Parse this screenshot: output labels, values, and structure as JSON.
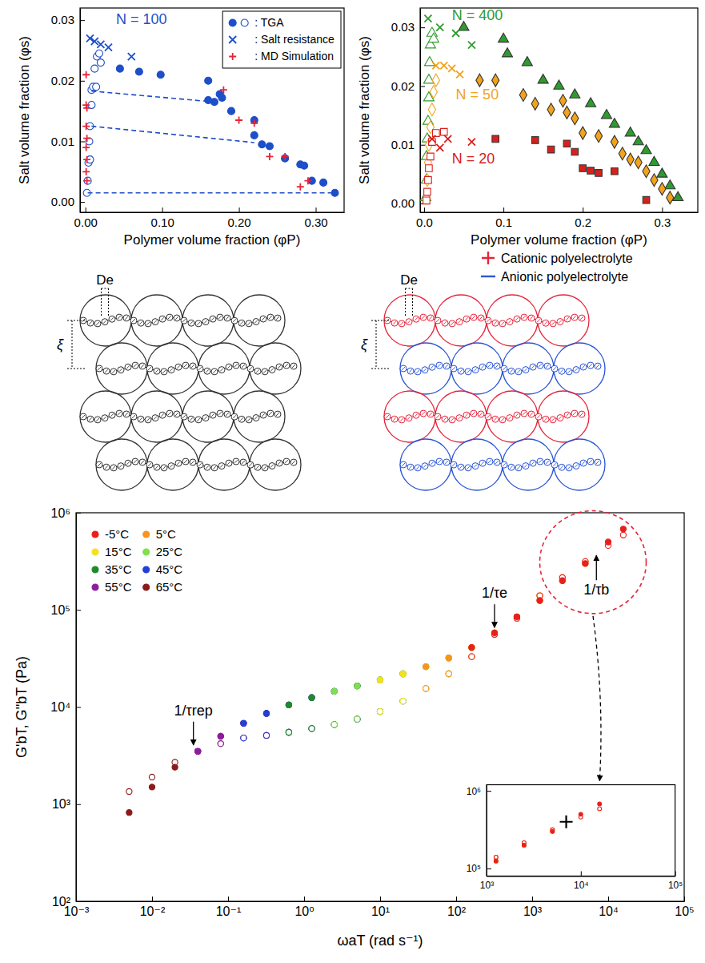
{
  "chart_data": [
    {
      "type": "scatter",
      "xlabel": "Polymer volume fraction (φP)",
      "ylabel": "Salt volume fraction (φs)",
      "xlim": [
        -0.007,
        0.337
      ],
      "ylim": [
        -0.0017,
        0.032
      ],
      "xticks": [
        {
          "value": 0,
          "label": "0.00"
        },
        {
          "value": 0.1,
          "label": "0.10"
        },
        {
          "value": 0.2,
          "label": "0.20"
        },
        {
          "value": 0.3,
          "label": "0.30"
        }
      ],
      "yticks": [
        {
          "value": 0,
          "label": "0.00"
        },
        0.01,
        0.02,
        0.03
      ],
      "legend": "upper right",
      "annotations": [
        {
          "text": "N = 100",
          "x": 0.04,
          "y": 0.0293,
          "color": "#1d4fc9"
        }
      ],
      "series": [
        {
          "name": ": TGA",
          "color": "#1d4fc9",
          "marker": "circle",
          "x": [
            0.045,
            0.07,
            0.098,
            0.16,
            0.16,
            0.168,
            0.175,
            0.178,
            0.19,
            0.22,
            0.22,
            0.23,
            0.24,
            0.26,
            0.28,
            0.285,
            0.295,
            0.31,
            0.325
          ],
          "values": [
            0.022,
            0.0215,
            0.021,
            0.02,
            0.0168,
            0.0165,
            0.0178,
            0.0172,
            0.015,
            0.0135,
            0.011,
            0.0095,
            0.0092,
            0.0072,
            0.0062,
            0.006,
            0.0035,
            0.0032,
            0.0015
          ]
        },
        {
          "name": ": TGA",
          "color": "#1d4fc9",
          "marker": "open-circle",
          "x": [
            0.002,
            0.003,
            0.004,
            0.006,
            0.005,
            0.006,
            0.008,
            0.008,
            0.01,
            0.014,
            0.012,
            0.015,
            0.02,
            0.018
          ],
          "values": [
            0.0015,
            0.0035,
            0.0065,
            0.007,
            0.01,
            0.0125,
            0.016,
            0.0185,
            0.019,
            0.019,
            0.022,
            0.024,
            0.023,
            0.0245
          ]
        },
        {
          "name": ": Salt resistance",
          "color": "#1d4fc9",
          "marker": "x",
          "x": [
            0.006,
            0.012,
            0.02,
            0.03,
            0.06
          ],
          "values": [
            0.027,
            0.0265,
            0.026,
            0.0255,
            0.024
          ]
        },
        {
          "name": ": MD Simulation",
          "color": "#e8233a",
          "marker": "plus",
          "x": [
            0.001,
            0.001,
            0.002,
            0.001,
            0.002,
            0.001,
            0.002,
            0.001,
            0.002,
            0.18,
            0.2,
            0.22,
            0.24,
            0.26,
            0.28,
            0.29
          ],
          "values": [
            0.021,
            0.016,
            0.0155,
            0.0125,
            0.0105,
            0.009,
            0.007,
            0.005,
            0.0035,
            0.0185,
            0.0135,
            0.013,
            0.0075,
            0.0075,
            0.0025,
            0.0035
          ]
        },
        {
          "type": "line",
          "line_style": "dashed",
          "color": "#1d4fc9",
          "x": [
            0.008,
            0.168,
            null,
            0.008,
            0.22,
            null,
            0.003,
            0.325
          ],
          "values": [
            0.0183,
            0.0165,
            null,
            0.0125,
            0.0098,
            null,
            0.0015,
            0.0015
          ]
        }
      ]
    },
    {
      "type": "scatter",
      "xlabel": "Polymer volume fraction (φP)",
      "ylabel": "Salt volume fraction (φs)",
      "xlim": [
        -0.005,
        0.345
      ],
      "ylim": [
        -0.0015,
        0.0333
      ],
      "xticks": [
        {
          "value": 0,
          "label": "0.0"
        },
        0.1,
        0.2,
        0.3
      ],
      "yticks": [
        {
          "value": 0,
          "label": "0.00"
        },
        0.01,
        0.02,
        0.03
      ],
      "annotations": [
        {
          "text": "N = 400",
          "x": 0.035,
          "y": 0.0313,
          "color": "#2e9b2e"
        },
        {
          "text": "N = 50",
          "x": 0.04,
          "y": 0.0178,
          "color": "#f2a31b"
        },
        {
          "text": "N = 20",
          "x": 0.035,
          "y": 0.0068,
          "color": "#d9201c"
        }
      ],
      "series": [
        {
          "color": "#2e9b2e",
          "marker": "triangle",
          "x": [
            0.05,
            0.1,
            0.105,
            0.13,
            0.15,
            0.17,
            0.19,
            0.21,
            0.23,
            0.24,
            0.26,
            0.27,
            0.28,
            0.29,
            0.3,
            0.31,
            0.32
          ],
          "values": [
            0.03,
            0.028,
            0.0255,
            0.024,
            0.021,
            0.02,
            0.0185,
            0.017,
            0.015,
            0.0135,
            0.012,
            0.0105,
            0.009,
            0.007,
            0.005,
            0.003,
            0.001
          ]
        },
        {
          "color": "#2e9b2e",
          "marker": "open-triangle",
          "x": [
            0.002,
            0.003,
            0.003,
            0.004,
            0.005,
            0.006,
            0.006,
            0.007,
            0.008,
            0.01,
            0.012
          ],
          "values": [
            0.001,
            0.004,
            0.008,
            0.011,
            0.014,
            0.018,
            0.021,
            0.024,
            0.027,
            0.029,
            0.028
          ]
        },
        {
          "color": "#2e9b2e",
          "marker": "x",
          "x": [
            0.005,
            0.02,
            0.04,
            0.06
          ],
          "values": [
            0.0315,
            0.03,
            0.029,
            0.027
          ]
        },
        {
          "color": "#f2a31b",
          "marker": "diamond",
          "x": [
            0.07,
            0.09,
            0.125,
            0.14,
            0.16,
            0.175,
            0.18,
            0.19,
            0.2,
            0.22,
            0.24,
            0.25,
            0.26,
            0.27,
            0.28,
            0.29,
            0.3,
            0.31
          ],
          "values": [
            0.021,
            0.021,
            0.0185,
            0.017,
            0.016,
            0.0175,
            0.0155,
            0.0145,
            0.012,
            0.0115,
            0.0105,
            0.0085,
            0.0075,
            0.007,
            0.0055,
            0.004,
            0.0025,
            0.001
          ]
        },
        {
          "color": "#f2a31b",
          "marker": "open-diamond",
          "x": [
            0.003,
            0.004,
            0.005,
            0.006,
            0.008,
            0.01,
            0.012,
            0.015
          ],
          "values": [
            0.001,
            0.004,
            0.007,
            0.01,
            0.013,
            0.016,
            0.019,
            0.021
          ]
        },
        {
          "color": "#f2a31b",
          "marker": "x",
          "x": [
            0.015,
            0.025,
            0.035,
            0.045
          ],
          "values": [
            0.0235,
            0.0235,
            0.023,
            0.022
          ]
        },
        {
          "color": "#d9201c",
          "marker": "square",
          "x": [
            0.09,
            0.14,
            0.16,
            0.18,
            0.19,
            0.2,
            0.21,
            0.22,
            0.24,
            0.28
          ],
          "values": [
            0.011,
            0.0108,
            0.0092,
            0.0102,
            0.0088,
            0.006,
            0.0056,
            0.0052,
            0.0055,
            0.0006
          ]
        },
        {
          "color": "#d9201c",
          "marker": "open-square",
          "x": [
            0.003,
            0.004,
            0.005,
            0.006,
            0.008,
            0.01,
            0.015,
            0.025
          ],
          "values": [
            0.0005,
            0.002,
            0.004,
            0.006,
            0.008,
            0.0105,
            0.012,
            0.0122
          ]
        },
        {
          "color": "#d9201c",
          "marker": "x",
          "x": [
            0.01,
            0.02,
            0.03,
            0.06
          ],
          "values": [
            0.011,
            0.0095,
            0.011,
            0.0105
          ]
        }
      ]
    },
    {
      "type": "scatter",
      "log": true,
      "xlabel": "ωaT (rad s⁻¹)",
      "ylabel": "G'bT, G''bT (Pa)",
      "xlim": [
        0.001,
        100000
      ],
      "ylim": [
        100,
        1000000
      ],
      "xticks": [
        {
          "value": 0.001,
          "label": "10⁻³"
        },
        {
          "value": 0.01,
          "label": "10⁻²"
        },
        {
          "value": 0.1,
          "label": "10⁻¹"
        },
        {
          "value": 1,
          "label": "10⁰"
        },
        {
          "value": 10,
          "label": "10¹"
        },
        {
          "value": 100,
          "label": "10²"
        },
        {
          "value": 1000,
          "label": "10³"
        },
        {
          "value": 10000,
          "label": "10⁴"
        },
        {
          "value": 100000,
          "label": "10⁵"
        }
      ],
      "yticks": [
        {
          "value": 100,
          "label": "10²"
        },
        {
          "value": 1000,
          "label": "10³"
        },
        {
          "value": 10000,
          "label": "10⁴"
        },
        {
          "value": 100000,
          "label": "10⁵"
        },
        {
          "value": 1000000,
          "label": "10⁶"
        }
      ],
      "legend": "upper left",
      "annotations": [
        {
          "text": "1/τrep",
          "x": 0.035,
          "y": 3700
        },
        {
          "text": "1/τe",
          "x": 320,
          "y": 60000
        },
        {
          "text": "1/τb",
          "x": 7000,
          "y": 400000
        }
      ],
      "series": [
        {
          "name": "-5°C",
          "color": "#e8201c",
          "marker": "circle",
          "x": [
            160,
            320,
            630,
            1260,
            2500,
            5000,
            10000,
            15800
          ],
          "values": [
            41000,
            58000,
            85000,
            125000,
            200000,
            300000,
            500000,
            680000
          ]
        },
        {
          "color": "#e8201c",
          "marker": "open-circle",
          "x": [
            160,
            320,
            630,
            1260,
            2500,
            5000,
            10000,
            15800
          ],
          "values": [
            33000,
            56000,
            82000,
            140000,
            215000,
            315000,
            460000,
            590000
          ]
        },
        {
          "name": "5°C",
          "color": "#f7941d",
          "marker": "circle",
          "x": [
            40,
            80,
            160,
            320,
            630,
            1260,
            2500,
            5000
          ],
          "values": [
            26000,
            32000,
            41000,
            58000,
            85000,
            125000,
            200000,
            300000
          ]
        },
        {
          "color": "#f7941d",
          "marker": "open-circle",
          "x": [
            40,
            80,
            160,
            320,
            630,
            1260,
            2500,
            5000
          ],
          "values": [
            15500,
            22000,
            33000,
            56000,
            82000,
            140000,
            215000,
            315000
          ]
        },
        {
          "name": "15°C",
          "color": "#f5e11b",
          "marker": "circle",
          "x": [
            10,
            20,
            40,
            80,
            160,
            320,
            630,
            1260
          ],
          "values": [
            19000,
            22000,
            26000,
            32000,
            41000,
            58000,
            85000,
            125000
          ]
        },
        {
          "color": "#f5e11b",
          "marker": "open-circle",
          "x": [
            10,
            20,
            40,
            80,
            160,
            320,
            630,
            1260
          ],
          "values": [
            9000,
            11500,
            15500,
            22000,
            33000,
            56000,
            82000,
            140000
          ]
        },
        {
          "name": "25°C",
          "color": "#7ee04a",
          "marker": "circle",
          "x": [
            2.5,
            5,
            10,
            20,
            40,
            80,
            160,
            320
          ],
          "values": [
            14500,
            16500,
            19000,
            22000,
            26000,
            32000,
            41000,
            58000
          ]
        },
        {
          "color": "#7ee04a",
          "marker": "open-circle",
          "x": [
            2.5,
            5,
            10,
            20,
            40,
            80,
            160,
            320
          ],
          "values": [
            6600,
            7500,
            9000,
            11500,
            15500,
            22000,
            33000,
            56000
          ]
        },
        {
          "name": "35°C",
          "color": "#1f8a2b",
          "marker": "circle",
          "x": [
            0.63,
            1.26,
            2.5,
            5,
            10,
            20,
            40,
            80
          ],
          "values": [
            10500,
            12500,
            14500,
            16500,
            19000,
            22000,
            26000,
            32000
          ]
        },
        {
          "color": "#1f8a2b",
          "marker": "open-circle",
          "x": [
            0.63,
            1.26,
            2.5,
            5,
            10,
            20,
            40,
            80
          ],
          "values": [
            5500,
            6000,
            6600,
            7500,
            9000,
            11500,
            15500,
            22000
          ]
        },
        {
          "name": "45°C",
          "color": "#2140d6",
          "marker": "circle",
          "x": [
            0.16,
            0.32,
            0.63,
            1.26,
            2.5,
            5,
            10,
            20
          ],
          "values": [
            6800,
            8600,
            10500,
            12500,
            14500,
            16500,
            19000,
            22000
          ]
        },
        {
          "color": "#2140d6",
          "marker": "open-circle",
          "x": [
            0.16,
            0.32,
            0.63,
            1.26,
            2.5,
            5,
            10,
            20
          ],
          "values": [
            4800,
            5100,
            5500,
            6000,
            6600,
            7500,
            9000,
            11500
          ]
        },
        {
          "name": "55°C",
          "color": "#8e1c9e",
          "marker": "circle",
          "x": [
            0.04,
            0.08,
            0.16,
            0.32,
            0.63,
            1.26,
            2.5,
            5
          ],
          "values": [
            3500,
            5000,
            6800,
            8600,
            10500,
            12500,
            14500,
            16500
          ]
        },
        {
          "color": "#8e1c9e",
          "marker": "open-circle",
          "x": [
            0.04,
            0.08,
            0.16,
            0.32,
            0.63,
            1.26,
            2.5,
            5
          ],
          "values": [
            3500,
            4200,
            4800,
            5100,
            5500,
            6000,
            6600,
            7500
          ]
        },
        {
          "name": "65°C",
          "color": "#8b1a1a",
          "marker": "circle",
          "x": [
            0.005,
            0.01,
            0.02,
            0.04,
            0.08,
            0.16,
            0.32,
            0.63
          ],
          "values": [
            820,
            1500,
            2400,
            3500,
            5000,
            6800,
            8600,
            10500
          ]
        },
        {
          "color": "#8b1a1a",
          "marker": "open-circle",
          "x": [
            0.005,
            0.01,
            0.02,
            0.04,
            0.08,
            0.16,
            0.32,
            0.63
          ],
          "values": [
            1350,
            1900,
            2700,
            3500,
            4200,
            4800,
            5100,
            5500
          ]
        }
      ]
    },
    {
      "type": "scatter",
      "log": true,
      "xlim": [
        1000,
        100000
      ],
      "ylim": [
        80000,
        1200000
      ],
      "xticks": [
        {
          "value": 1000,
          "label": "10³"
        },
        {
          "value": 10000,
          "label": "10⁴"
        },
        {
          "value": 100000,
          "label": "10⁵"
        }
      ],
      "yticks": [
        {
          "value": 100000,
          "label": "10⁵"
        },
        {
          "value": 1000000,
          "label": "10⁶"
        }
      ],
      "series": [
        {
          "color": "#000000",
          "marker": "plus",
          "x": [
            7000
          ],
          "values": [
            400000
          ]
        }
      ]
    }
  ],
  "diagram": {
    "panels": [
      {
        "blob_label": "De",
        "spacing_label": "ξ"
      },
      {
        "blob_label": "De",
        "spacing_label": "ξ"
      }
    ],
    "legend": [
      {
        "label": "Cationic polyelectrolyte",
        "color": "#e8233a",
        "marker": "plus"
      },
      {
        "label": "Anionic polyelectrolyte",
        "color": "#2a55d8",
        "marker": "line"
      }
    ]
  }
}
